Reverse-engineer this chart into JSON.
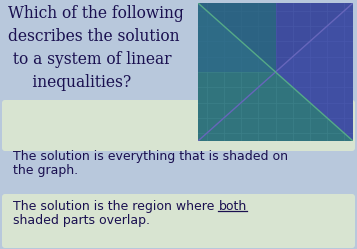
{
  "bg_color": "#b8c8dc",
  "question_lines": [
    "Which of the following",
    "describes the solution",
    " to a system of linear",
    "     inequalities?"
  ],
  "question_color": "#1a1050",
  "option_bg": "#dde8d0",
  "option_text_color": "#1a1050",
  "opt1_line1": "The solution is everything that is shaded on",
  "opt1_line2": "the graph.",
  "opt2_line1_pre": "The solution is the region where ",
  "opt2_line1_both": "both",
  "opt2_line2": "shaded parts overlap.",
  "graph_bg": "#253060",
  "grid_color": "#3a4878",
  "shade_teal": "#3db89a",
  "shade_blue": "#5060c8",
  "shade_overlap": "#2a5888",
  "axis_color": "#aaaacc",
  "line1_color": "#6666bb",
  "line2_color": "#55aa88"
}
